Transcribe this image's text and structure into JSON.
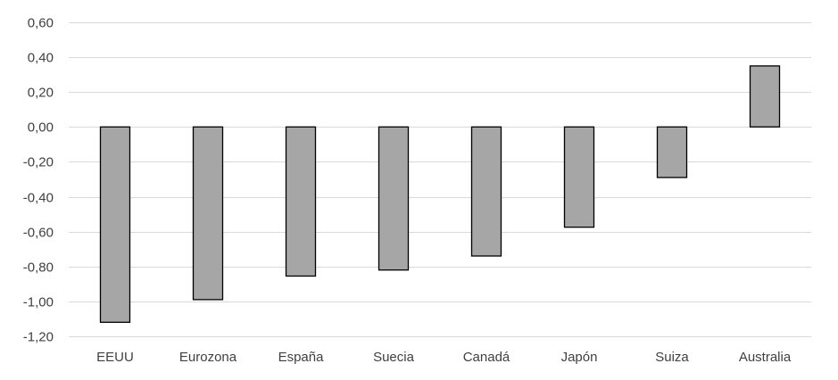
{
  "chart_data": {
    "type": "bar",
    "title": "",
    "xlabel": "",
    "ylabel": "",
    "categories": [
      "EEUU",
      "Eurozona",
      "España",
      "Suecia",
      "Canadá",
      "Japón",
      "Suiza",
      "Australia"
    ],
    "values": [
      -1.12,
      -0.99,
      -0.855,
      -0.82,
      -0.74,
      -0.575,
      -0.29,
      0.35
    ],
    "ylim": [
      -1.2,
      0.6
    ],
    "yticks": [
      0.6,
      0.4,
      0.2,
      0.0,
      -0.2,
      -0.4,
      -0.6,
      -0.8,
      -1.0,
      -1.2
    ],
    "ytick_labels": [
      "0,60",
      "0,40",
      "0,20",
      "0,00",
      "-0,20",
      "-0,40",
      "-0,60",
      "-0,80",
      "-1,00",
      "-1,20"
    ],
    "grid": true,
    "legend": "none",
    "colors": {
      "bar_fill": "#a6a6a6",
      "bar_stroke": "#000000",
      "grid": "#d9d9d9",
      "text": "#404040"
    }
  }
}
